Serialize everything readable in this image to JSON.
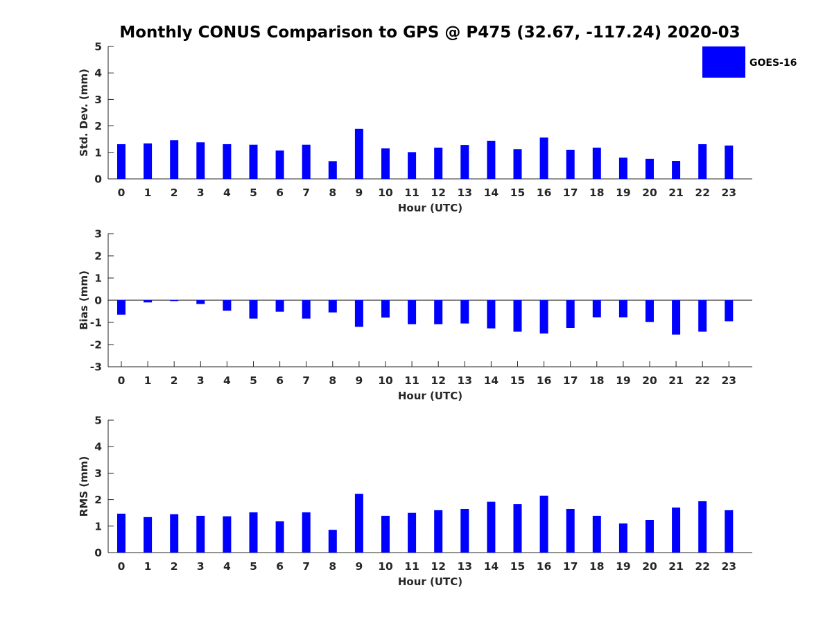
{
  "chart_data": {
    "type": "bar",
    "title": "Monthly CONUS Comparison to GPS @ P475 (32.67, -117.24) 2020-03",
    "legend": {
      "entries": [
        "GOES-16"
      ],
      "placement": "top-right",
      "color": "#0000FF"
    },
    "bar_color": "#0000FF",
    "subplots": [
      {
        "ylabel": "Std. Dev. (mm)",
        "xlabel": "Hour (UTC)",
        "ylim": [
          0,
          5
        ],
        "yticks": [
          0,
          1,
          2,
          3,
          4,
          5
        ],
        "categories": [
          "0",
          "1",
          "2",
          "3",
          "4",
          "5",
          "6",
          "7",
          "8",
          "9",
          "10",
          "11",
          "12",
          "13",
          "14",
          "15",
          "16",
          "17",
          "18",
          "19",
          "20",
          "21",
          "22",
          "23"
        ],
        "series": [
          {
            "name": "GOES-16",
            "values": [
              1.31,
              1.34,
              1.46,
              1.38,
              1.31,
              1.29,
              1.07,
              1.29,
              0.67,
              1.89,
              1.15,
              1.01,
              1.18,
              1.28,
              1.44,
              1.12,
              1.56,
              1.1,
              1.18,
              0.8,
              0.76,
              0.68,
              1.31,
              1.26
            ]
          }
        ]
      },
      {
        "ylabel": "Bias (mm)",
        "xlabel": "Hour (UTC)",
        "ylim": [
          -3,
          3
        ],
        "yticks": [
          -3,
          -2,
          -1,
          0,
          1,
          2,
          3
        ],
        "categories": [
          "0",
          "1",
          "2",
          "3",
          "4",
          "5",
          "6",
          "7",
          "8",
          "9",
          "10",
          "11",
          "12",
          "13",
          "14",
          "15",
          "16",
          "17",
          "18",
          "19",
          "20",
          "21",
          "22",
          "23"
        ],
        "series": [
          {
            "name": "GOES-16",
            "values": [
              -0.65,
              -0.1,
              -0.04,
              -0.17,
              -0.47,
              -0.83,
              -0.52,
              -0.83,
              -0.55,
              -1.2,
              -0.78,
              -1.08,
              -1.08,
              -1.05,
              -1.27,
              -1.42,
              -1.5,
              -1.25,
              -0.77,
              -0.77,
              -0.98,
              -1.55,
              -1.42,
              -0.95
            ]
          }
        ]
      },
      {
        "ylabel": "RMS (mm)",
        "xlabel": "Hour (UTC)",
        "ylim": [
          0,
          5
        ],
        "yticks": [
          0,
          1,
          2,
          3,
          4,
          5
        ],
        "categories": [
          "0",
          "1",
          "2",
          "3",
          "4",
          "5",
          "6",
          "7",
          "8",
          "9",
          "10",
          "11",
          "12",
          "13",
          "14",
          "15",
          "16",
          "17",
          "18",
          "19",
          "20",
          "21",
          "22",
          "23"
        ],
        "series": [
          {
            "name": "GOES-16",
            "values": [
              1.47,
              1.34,
              1.45,
              1.39,
              1.37,
              1.52,
              1.18,
              1.52,
              0.86,
              2.22,
              1.39,
              1.5,
              1.6,
              1.65,
              1.92,
              1.83,
              2.15,
              1.65,
              1.39,
              1.1,
              1.23,
              1.7,
              1.94,
              1.6
            ]
          }
        ]
      }
    ]
  }
}
